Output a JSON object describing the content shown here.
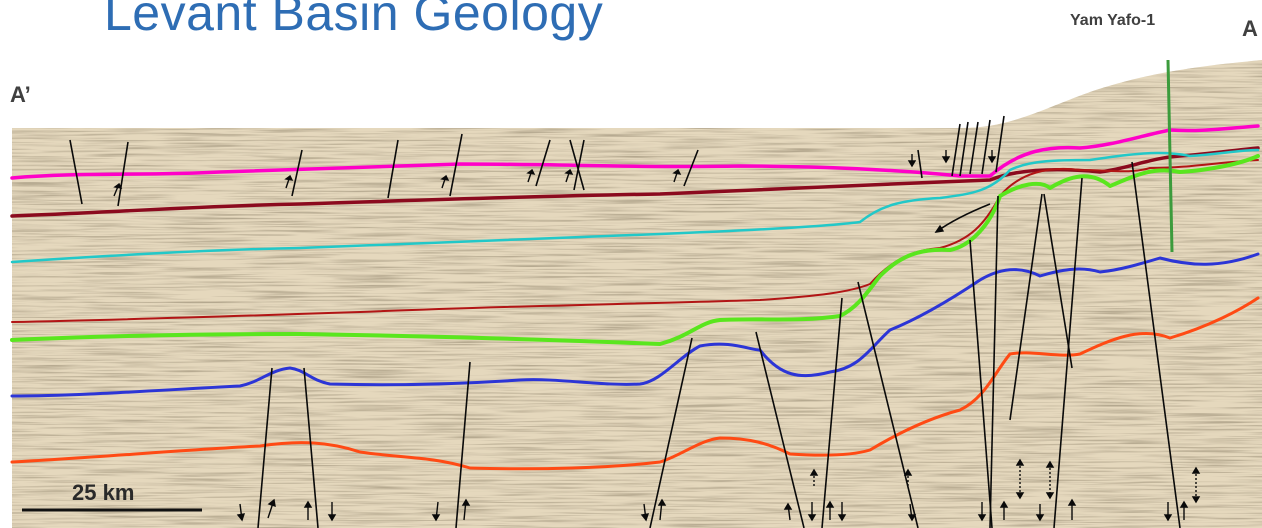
{
  "title": "Levant Basin Geology",
  "well": {
    "name": "Yam Yafo-1"
  },
  "endpoints": {
    "left": "A’",
    "right": "A"
  },
  "scale_bar": {
    "label": "25 km"
  },
  "horizon_colors": {
    "magenta": "#ff00c8",
    "maroon": "#8b0a1e",
    "cyan": "#22c8c8",
    "red": "#b21515",
    "green": "#5ae61e",
    "blue": "#2c35d6",
    "orange": "#ff4a14"
  },
  "background_colors": {
    "seismic_base": "#e8dcc4",
    "reflector": "#9a8868"
  }
}
